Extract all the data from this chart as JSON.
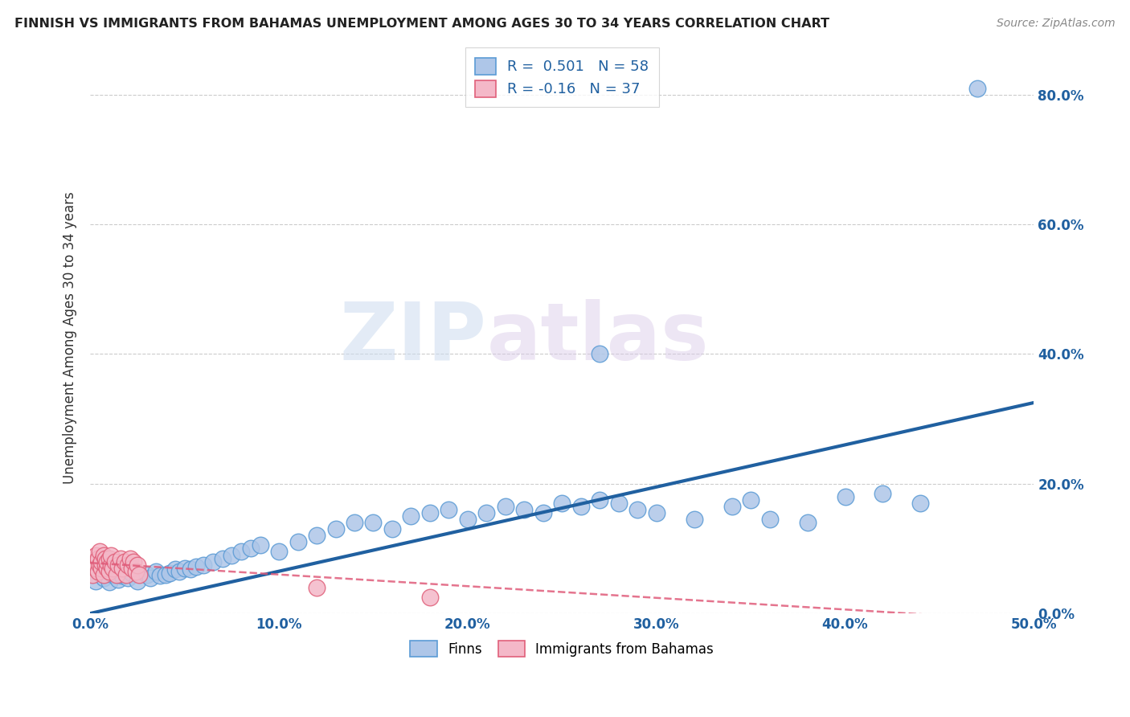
{
  "title": "FINNISH VS IMMIGRANTS FROM BAHAMAS UNEMPLOYMENT AMONG AGES 30 TO 34 YEARS CORRELATION CHART",
  "source": "Source: ZipAtlas.com",
  "ylabel": "Unemployment Among Ages 30 to 34 years",
  "xlim": [
    0.0,
    0.5
  ],
  "ylim": [
    0.0,
    0.85
  ],
  "x_ticks": [
    0.0,
    0.1,
    0.2,
    0.3,
    0.4,
    0.5
  ],
  "y_ticks": [
    0.0,
    0.2,
    0.4,
    0.6,
    0.8
  ],
  "grid_color": "#cccccc",
  "background_color": "#ffffff",
  "finn_color": "#aec6e8",
  "finn_edge_color": "#5b9bd5",
  "finn_R": 0.501,
  "finn_N": 58,
  "finn_line_color": "#2060a0",
  "finn_line_intercept": 0.0,
  "finn_line_slope": 0.65,
  "bahamas_color": "#f4b8c8",
  "bahamas_edge_color": "#e0607a",
  "bahamas_R": -0.16,
  "bahamas_N": 37,
  "bahamas_line_color": "#e05c7a",
  "bahamas_line_intercept": 0.078,
  "bahamas_line_slope": -0.18,
  "watermark_zip": "ZIP",
  "watermark_atlas": "atlas",
  "title_color": "#222222",
  "axis_label_color": "#2060a0",
  "finn_x": [
    0.003,
    0.007,
    0.01,
    0.012,
    0.015,
    0.017,
    0.02,
    0.022,
    0.025,
    0.03,
    0.032,
    0.035,
    0.037,
    0.04,
    0.042,
    0.045,
    0.047,
    0.05,
    0.053,
    0.056,
    0.06,
    0.065,
    0.07,
    0.075,
    0.08,
    0.085,
    0.09,
    0.1,
    0.11,
    0.12,
    0.13,
    0.14,
    0.15,
    0.16,
    0.17,
    0.18,
    0.19,
    0.2,
    0.21,
    0.22,
    0.23,
    0.24,
    0.25,
    0.26,
    0.27,
    0.28,
    0.29,
    0.3,
    0.32,
    0.34,
    0.35,
    0.36,
    0.38,
    0.4,
    0.42,
    0.44,
    0.27,
    0.47
  ],
  "finn_y": [
    0.05,
    0.055,
    0.048,
    0.06,
    0.052,
    0.058,
    0.055,
    0.062,
    0.05,
    0.06,
    0.055,
    0.065,
    0.058,
    0.06,
    0.062,
    0.068,
    0.065,
    0.07,
    0.068,
    0.072,
    0.075,
    0.08,
    0.085,
    0.09,
    0.095,
    0.1,
    0.105,
    0.095,
    0.11,
    0.12,
    0.13,
    0.14,
    0.14,
    0.13,
    0.15,
    0.155,
    0.16,
    0.145,
    0.155,
    0.165,
    0.16,
    0.155,
    0.17,
    0.165,
    0.175,
    0.17,
    0.16,
    0.155,
    0.145,
    0.165,
    0.175,
    0.145,
    0.14,
    0.18,
    0.185,
    0.17,
    0.4,
    0.81
  ],
  "bahamas_x": [
    0.001,
    0.002,
    0.003,
    0.003,
    0.004,
    0.004,
    0.005,
    0.005,
    0.006,
    0.006,
    0.007,
    0.007,
    0.008,
    0.008,
    0.009,
    0.009,
    0.01,
    0.01,
    0.011,
    0.011,
    0.012,
    0.013,
    0.014,
    0.015,
    0.016,
    0.017,
    0.018,
    0.019,
    0.02,
    0.021,
    0.022,
    0.023,
    0.024,
    0.025,
    0.026,
    0.12,
    0.18
  ],
  "bahamas_y": [
    0.06,
    0.08,
    0.07,
    0.09,
    0.065,
    0.085,
    0.075,
    0.095,
    0.07,
    0.08,
    0.06,
    0.09,
    0.075,
    0.085,
    0.07,
    0.08,
    0.065,
    0.085,
    0.075,
    0.09,
    0.07,
    0.08,
    0.06,
    0.075,
    0.085,
    0.07,
    0.08,
    0.06,
    0.075,
    0.085,
    0.07,
    0.08,
    0.065,
    0.075,
    0.06,
    0.04,
    0.025
  ]
}
